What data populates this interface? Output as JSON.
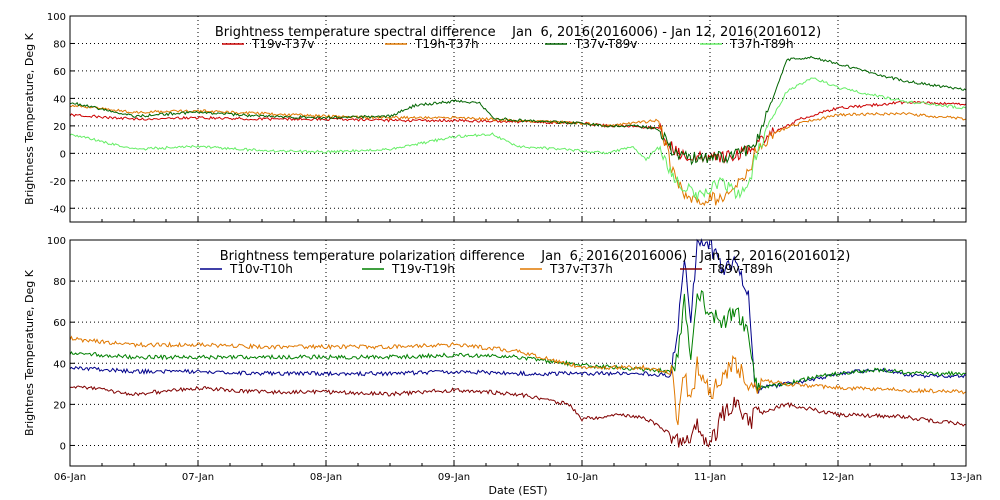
{
  "chart_data": [
    {
      "type": "line",
      "title": "Brightness temperature spectral difference    Jan  6, 2016(2016006) - Jan 12, 2016(2016012)",
      "xlabel": "",
      "ylabel": "Brightness Temperature, Deg K",
      "x_ticks": [
        "06-Jan",
        "07-Jan",
        "08-Jan",
        "09-Jan",
        "10-Jan",
        "11-Jan",
        "12-Jan",
        "13-Jan"
      ],
      "xlim": [
        0,
        7
      ],
      "ylim": [
        -50,
        100
      ],
      "y_ticks": [
        -40,
        -20,
        0,
        20,
        40,
        60,
        80,
        100
      ],
      "grid": true,
      "series": [
        {
          "name": "T19v-T37v",
          "color": "#cc0000",
          "x": [
            0,
            0.5,
            1,
            1.5,
            2,
            2.5,
            3,
            3.5,
            4,
            4.2,
            4.4,
            4.6,
            4.7,
            4.8,
            5,
            5.2,
            5.35,
            5.5,
            5.7,
            6,
            6.5,
            7
          ],
          "values": [
            28,
            25,
            26,
            25,
            25,
            24,
            24,
            23,
            22,
            20,
            20,
            18,
            5,
            -3,
            -3,
            -2,
            5,
            15,
            25,
            33,
            37,
            36
          ]
        },
        {
          "name": "T19h-T37h",
          "color": "#e07800",
          "x": [
            0,
            0.5,
            1,
            1.5,
            2,
            2.5,
            3,
            3.5,
            4,
            4.2,
            4.4,
            4.6,
            4.7,
            4.8,
            4.9,
            5,
            5.1,
            5.2,
            5.3,
            5.35,
            5.5,
            5.7,
            6,
            6.5,
            7
          ],
          "values": [
            35,
            30,
            31,
            29,
            27,
            26,
            26,
            24,
            22,
            20,
            22,
            24,
            -10,
            -30,
            -35,
            -32,
            -35,
            -25,
            -15,
            0,
            15,
            22,
            28,
            29,
            25
          ]
        },
        {
          "name": "T37v-T89v",
          "color": "#006400",
          "x": [
            0,
            0.5,
            1,
            1.5,
            2,
            2.5,
            2.7,
            3,
            3.2,
            3.3,
            3.5,
            4,
            4.2,
            4.4,
            4.6,
            4.7,
            4.8,
            5,
            5.2,
            5.35,
            5.45,
            5.6,
            5.8,
            6,
            6.5,
            7
          ],
          "values": [
            37,
            27,
            30,
            27,
            26,
            27,
            35,
            38,
            37,
            26,
            24,
            22,
            20,
            20,
            18,
            2,
            -3,
            -4,
            -1,
            5,
            30,
            68,
            70,
            65,
            53,
            46
          ]
        },
        {
          "name": "T37h-T89h",
          "color": "#66ee66",
          "x": [
            0,
            0.5,
            1,
            1.5,
            2,
            2.5,
            3,
            3.3,
            3.5,
            4,
            4.2,
            4.4,
            4.5,
            4.6,
            4.7,
            4.8,
            4.9,
            5,
            5.1,
            5.2,
            5.3,
            5.35,
            5.45,
            5.6,
            5.8,
            6,
            6.5,
            7
          ],
          "values": [
            14,
            3,
            5,
            2,
            1,
            3,
            12,
            14,
            5,
            2,
            0,
            5,
            -5,
            5,
            -15,
            -25,
            -30,
            -25,
            -20,
            -30,
            -25,
            -5,
            20,
            45,
            55,
            48,
            38,
            33
          ]
        }
      ]
    },
    {
      "type": "line",
      "title": "Brightness temperature polarization difference    Jan  6, 2016(2016006) - Jan 12, 2016(2016012)",
      "xlabel": "Date (EST)",
      "ylabel": "Brightnes Temperature, Deg K",
      "x_ticks": [
        "06-Jan",
        "07-Jan",
        "08-Jan",
        "09-Jan",
        "10-Jan",
        "11-Jan",
        "12-Jan",
        "13-Jan"
      ],
      "xlim": [
        0,
        7
      ],
      "ylim": [
        -10,
        100
      ],
      "y_ticks": [
        0,
        20,
        40,
        60,
        80,
        100
      ],
      "grid": true,
      "series": [
        {
          "name": "T10v-T10h",
          "color": "#00008b",
          "x": [
            0,
            0.5,
            1,
            1.5,
            2,
            2.5,
            3,
            3.5,
            4,
            4.5,
            4.7,
            4.75,
            4.8,
            4.85,
            4.9,
            5,
            5.1,
            5.2,
            5.3,
            5.35,
            5.4,
            5.6,
            5.8,
            6,
            6.3,
            6.6,
            7
          ],
          "values": [
            38,
            36,
            36,
            35,
            35,
            35,
            36,
            35,
            35,
            35,
            34,
            60,
            90,
            60,
            100,
            98,
            85,
            90,
            75,
            30,
            28,
            30,
            32,
            35,
            37,
            34,
            34
          ]
        },
        {
          "name": "T19v-T19h",
          "color": "#008000",
          "x": [
            0,
            0.5,
            1,
            1.5,
            2,
            2.5,
            3,
            3.5,
            4,
            4.5,
            4.7,
            4.75,
            4.8,
            4.85,
            4.9,
            5,
            5.1,
            5.2,
            5.3,
            5.35,
            5.4,
            5.6,
            5.8,
            6,
            6.3,
            6.6,
            7
          ],
          "values": [
            45,
            43,
            43,
            43,
            43,
            43,
            44,
            43,
            39,
            37,
            36,
            45,
            70,
            40,
            75,
            65,
            60,
            65,
            55,
            30,
            28,
            30,
            33,
            35,
            37,
            35,
            35
          ]
        },
        {
          "name": "T37v-T37h",
          "color": "#e07800",
          "x": [
            0,
            0.5,
            1,
            1.5,
            2,
            2.5,
            3,
            3.5,
            4,
            4.3,
            4.5,
            4.7,
            4.75,
            4.8,
            4.85,
            4.9,
            5,
            5.1,
            5.2,
            5.3,
            5.35,
            5.4,
            5.6,
            6,
            6.5,
            7
          ],
          "values": [
            52,
            49,
            49,
            48,
            48,
            48,
            49,
            46,
            38,
            38,
            38,
            35,
            10,
            35,
            20,
            40,
            25,
            35,
            40,
            30,
            28,
            32,
            30,
            28,
            27,
            26
          ]
        },
        {
          "name": "T89v-T89h",
          "color": "#800000",
          "x": [
            0,
            0.5,
            1,
            1.5,
            2,
            2.5,
            3,
            3.5,
            3.9,
            4,
            4.3,
            4.5,
            4.7,
            4.8,
            4.9,
            5,
            5.1,
            5.2,
            5.3,
            5.35,
            5.4,
            5.6,
            6,
            6.5,
            7
          ],
          "values": [
            29,
            25,
            28,
            26,
            26,
            25,
            27,
            25,
            20,
            13,
            15,
            13,
            5,
            2,
            10,
            0,
            15,
            20,
            10,
            15,
            16,
            20,
            15,
            14,
            10
          ]
        }
      ]
    }
  ]
}
